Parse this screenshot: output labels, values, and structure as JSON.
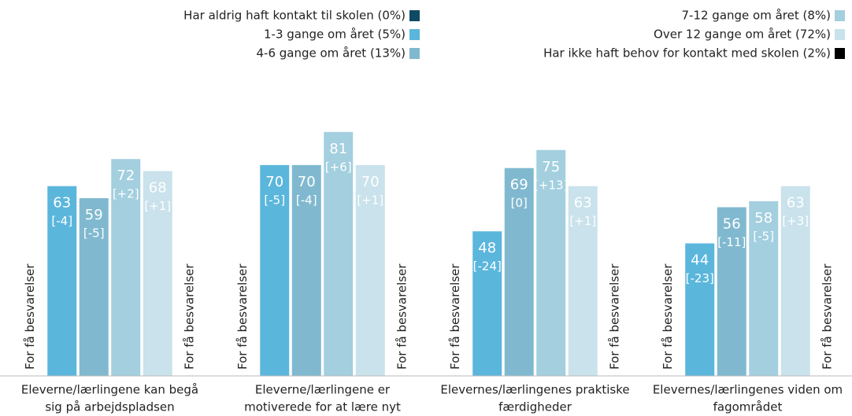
{
  "chart_data": {
    "type": "bar",
    "categories": [
      [
        "Eleverne/lærlingene kan begå",
        "sig på arbejdspladsen"
      ],
      [
        "Eleverne/lærlingene er",
        "motiverede for at lære nyt"
      ],
      [
        "Elevernes/lærlingenes praktiske",
        "færdigheder"
      ],
      [
        "Elevernes/lærlingenes viden om",
        "fagområdet"
      ]
    ],
    "missing_label": "For få besvarelser",
    "ylim": [
      0,
      100
    ],
    "series": [
      {
        "name": "Har aldrig haft kontakt til skolen (0%)",
        "color": "#0d4a63",
        "values": [
          null,
          null,
          null,
          null
        ],
        "changes": [
          null,
          null,
          null,
          null
        ]
      },
      {
        "name": "1-3 gange om året (5%)",
        "color": "#5bb6dc",
        "values": [
          63,
          70,
          48,
          44
        ],
        "changes": [
          "[-4]",
          "[-5]",
          "[-24]",
          "[-23]"
        ]
      },
      {
        "name": "4-6 gange om året (13%)",
        "color": "#80b9cf",
        "values": [
          59,
          70,
          69,
          56
        ],
        "changes": [
          "[-5]",
          "[-4]",
          "[0]",
          "[-11]"
        ]
      },
      {
        "name": "7-12 gange om året (8%)",
        "color": "#a3cfdf",
        "values": [
          72,
          81,
          75,
          58
        ],
        "changes": [
          "[+2]",
          "[+6]",
          "[+13]",
          "[-5]"
        ]
      },
      {
        "name": "Over 12 gange om året (72%)",
        "color": "#c9e2ec",
        "values": [
          68,
          70,
          63,
          63
        ],
        "changes": [
          "[+1]",
          "[+1]",
          "[+1]",
          "[+3]"
        ]
      },
      {
        "name": "Har ikke haft behov for kontakt med skolen (2%)",
        "color": "#000000",
        "values": [
          null,
          null,
          null,
          null
        ],
        "changes": [
          null,
          null,
          null,
          null
        ]
      }
    ]
  }
}
